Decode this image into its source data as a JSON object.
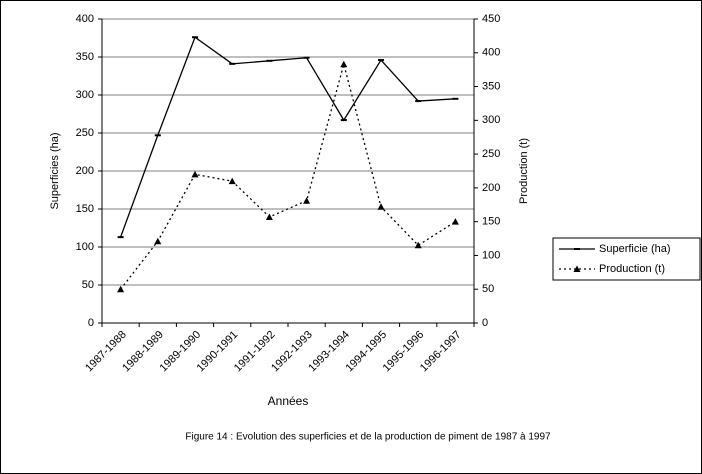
{
  "chart_data": {
    "type": "line",
    "caption": "Figure 14 : Evolution des superficies et de la production de piment de 1987 à 1997",
    "x_label": "Années",
    "y_label": "Superficies (ha)",
    "y2_label": "Production (t)",
    "categories": [
      "1987-1988",
      "1988-1989",
      "1989-1990",
      "1990-1991",
      "1991-1992",
      "1992-1993",
      "1993-1994",
      "1994-1995",
      "1995-1996",
      "1996-1997"
    ],
    "series": [
      {
        "name": "Superficie (ha)",
        "color": "#000000",
        "values": [
          113,
          247,
          376,
          341,
          345,
          349,
          267,
          346,
          292,
          295
        ]
      },
      {
        "name": "Production (t)",
        "color": "#000000",
        "axis": "y2",
        "values": [
          50,
          121,
          220,
          210,
          157,
          181,
          383,
          172,
          115,
          150
        ]
      }
    ],
    "ylim": [
      0,
      400
    ],
    "yticks": [
      0,
      50,
      100,
      150,
      200,
      250,
      300,
      350,
      400
    ],
    "y2lim": [
      0,
      450
    ],
    "y2ticks": [
      0,
      50,
      100,
      150,
      200,
      250,
      300,
      350,
      400,
      450
    ],
    "grid": true,
    "legend": "right"
  }
}
